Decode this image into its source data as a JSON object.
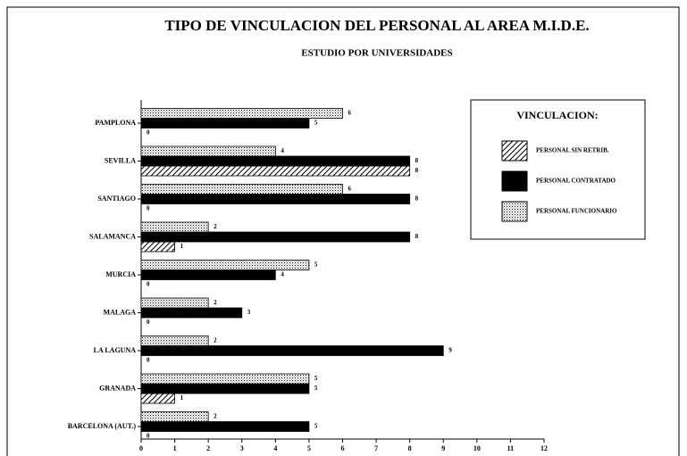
{
  "chart_data": {
    "type": "hbar",
    "title": "TIPO DE VINCULACION DEL PERSONAL AL AREA M.I.D.E.",
    "subtitle": "ESTUDIO POR UNIVERSIDADES",
    "legend_title": "VINCULACION:",
    "legend_position": "upper right",
    "categories": [
      "PAMPLONA",
      "SEVILLA",
      "SANTIAGO",
      "SALAMANCA",
      "MURCIA",
      "MALAGA",
      "LA LAGUNA",
      "GRANADA",
      "BARCELONA (AUT.)"
    ],
    "series": [
      {
        "name": "PERSONAL SIN RETRIB.",
        "color": "#000000",
        "pattern": "hatch",
        "values": [
          0,
          8,
          0,
          1,
          0,
          0,
          0,
          1,
          0
        ]
      },
      {
        "name": "PERSONAL CONTRATADO",
        "color": "#000000",
        "pattern": "solid",
        "values": [
          5,
          8,
          8,
          8,
          4,
          3,
          9,
          5,
          5
        ]
      },
      {
        "name": "PERSONAL FUNCIONARIO",
        "color": "#000000",
        "pattern": "dots",
        "values": [
          6,
          4,
          6,
          2,
          5,
          2,
          2,
          5,
          2
        ]
      }
    ],
    "xlim": [
      0,
      12
    ],
    "xticks": [
      0,
      1,
      2,
      3,
      4,
      5,
      6,
      7,
      8,
      9,
      10,
      11,
      12
    ]
  }
}
